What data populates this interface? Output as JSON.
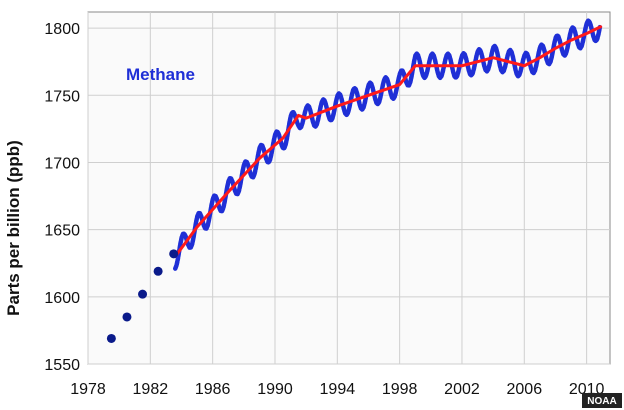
{
  "chart_data": {
    "type": "line",
    "title": "",
    "xlabel": "",
    "ylabel": "Parts per billion (ppb)",
    "xlim": [
      1978,
      2011.5
    ],
    "ylim": [
      1550,
      1812
    ],
    "x_ticks": [
      1978,
      1982,
      1986,
      1990,
      1994,
      1998,
      2002,
      2006,
      2010
    ],
    "y_ticks": [
      1550,
      1600,
      1650,
      1700,
      1750,
      1800
    ],
    "grid": true,
    "annotation": "Methane",
    "credit": "NOAA",
    "colors": {
      "monthly": "#1f2fd6",
      "trend": "#ff1a1a",
      "early_points": "#0a1a8a",
      "grid": "#cfcfcf",
      "plot_background": "#fafafa",
      "annotation": "#1f2fd6"
    },
    "series": [
      {
        "kind": "early-annual-points",
        "x": [
          1979.5,
          1980.5,
          1981.5,
          1982.5,
          1983.5
        ],
        "y": [
          1569,
          1585,
          1602,
          1619,
          1632
        ]
      },
      {
        "kind": "monthly-seasonal",
        "x_start": 1983.6,
        "x_end": 2010.9,
        "seasonal_amplitude": 9
      },
      {
        "kind": "trend",
        "x": [
          1983.6,
          1985,
          1987,
          1989,
          1990.5,
          1991.5,
          1992,
          1994,
          1996,
          1998,
          1999,
          2000,
          2002,
          2004,
          2006,
          2007,
          2008,
          2009,
          2010,
          2010.9
        ],
        "y": [
          1630,
          1652,
          1678,
          1703,
          1718,
          1735,
          1733,
          1742,
          1750,
          1758,
          1772,
          1772,
          1772,
          1778,
          1772,
          1778,
          1785,
          1791,
          1796,
          1801
        ]
      }
    ]
  }
}
